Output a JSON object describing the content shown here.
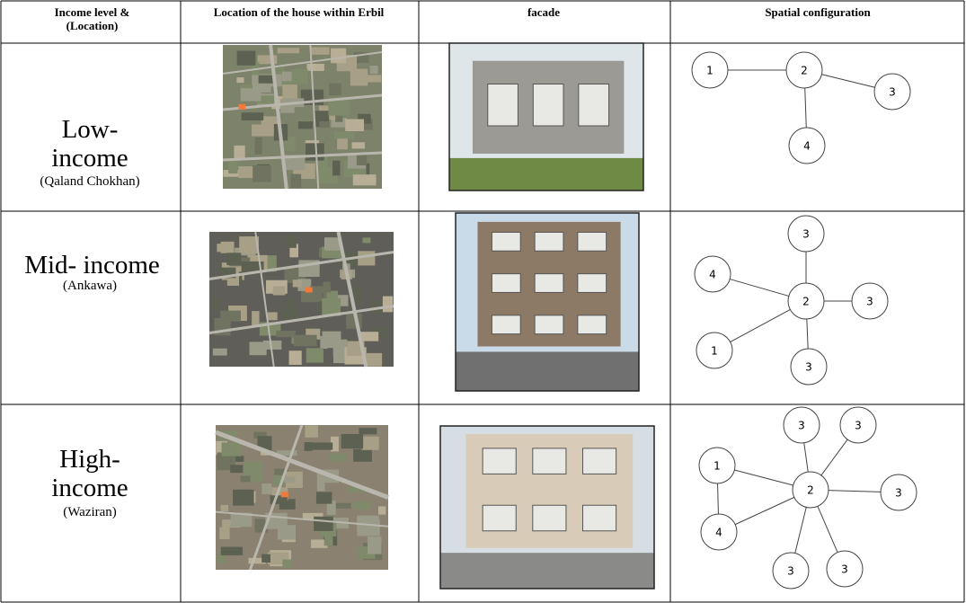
{
  "table": {
    "header": [
      "Income level & (Location)",
      "Location of the house within Erbil",
      "facade",
      "Spatial configuration"
    ],
    "rows": [
      {
        "income": "Low-income",
        "location": "(Qaland Chokhan)",
        "graph": [
          "1",
          "2",
          "3",
          "4"
        ]
      },
      {
        "income": "Mid- income",
        "location": "(Ankawa)",
        "graph": [
          "3",
          "4",
          "2",
          "3",
          "1",
          "3"
        ]
      },
      {
        "income": "High-income",
        "location": "(Waziran)",
        "graph": [
          "3",
          "3",
          "1",
          "2",
          "3",
          "4",
          "3",
          "3"
        ]
      }
    ]
  }
}
